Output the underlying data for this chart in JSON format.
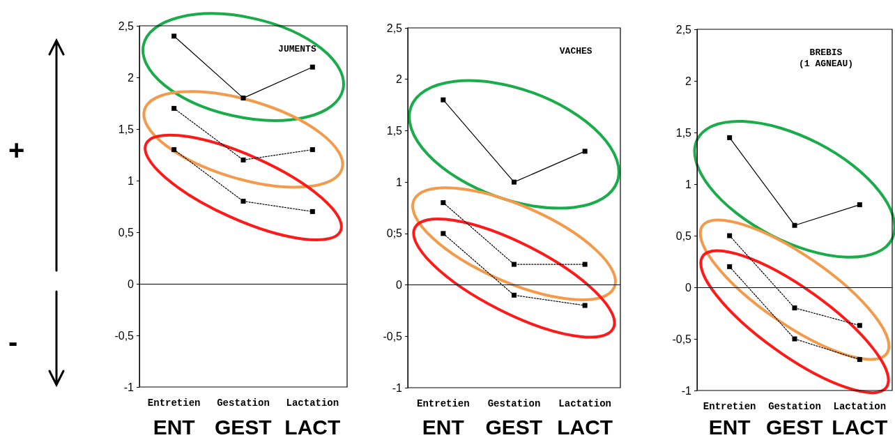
{
  "chart_data": [
    {
      "type": "line",
      "title": "JUMENTS",
      "categories": [
        "Entretien",
        "Gestation",
        "Lactation"
      ],
      "series": [
        {
          "color": "#000000",
          "line_style": "solid",
          "values": [
            2.4,
            1.8,
            2.1
          ]
        },
        {
          "color": "#000000",
          "line_style": "dotted",
          "values": [
            1.7,
            1.2,
            1.3
          ]
        },
        {
          "color": "#000000",
          "line_style": "dotted",
          "values": [
            1.3,
            0.8,
            0.7
          ]
        }
      ],
      "ylim": [
        -1,
        2.5
      ],
      "yticks": [
        {
          "value": 2.5,
          "label": "2,5"
        },
        2,
        {
          "value": 1.5,
          "label": "1,5"
        },
        1,
        {
          "value": 0.5,
          "label": "0,5"
        },
        0,
        {
          "value": -0.5,
          "label": "-0,5"
        },
        -1
      ],
      "ref_lines": [
        {
          "axis": "y",
          "value": 0
        }
      ],
      "marker": "square",
      "grid": false,
      "annotations": [
        "+",
        "-",
        "ENT",
        "GEST",
        "LACT"
      ]
    },
    {
      "type": "line",
      "title": "VACHES",
      "categories": [
        "Entretien",
        "Gestation",
        "Lactation"
      ],
      "series": [
        {
          "color": "#000000",
          "line_style": "solid",
          "values": [
            1.8,
            1.0,
            1.3
          ]
        },
        {
          "color": "#000000",
          "line_style": "dotted",
          "values": [
            0.8,
            0.2,
            0.2
          ]
        },
        {
          "color": "#000000",
          "line_style": "dotted",
          "values": [
            0.5,
            -0.1,
            -0.2
          ]
        }
      ],
      "ylim": [
        -1,
        2.5
      ],
      "yticks": [
        {
          "value": 2.5,
          "label": "2,5"
        },
        2,
        {
          "value": 1.5,
          "label": "1,5"
        },
        1,
        {
          "value": 0.5,
          "label": "0;5"
        },
        0,
        {
          "value": -0.5,
          "label": "-0,5"
        },
        -1
      ],
      "ref_lines": [
        {
          "axis": "y",
          "value": 0
        }
      ],
      "marker": "square",
      "grid": false,
      "annotations": [
        "ENT",
        "GEST",
        "LACT"
      ]
    },
    {
      "type": "line",
      "title": "BREBIS\n(1 AGNEAU)",
      "categories": [
        "Entretien",
        "Gestation",
        "Lactation"
      ],
      "series": [
        {
          "color": "#000000",
          "line_style": "solid",
          "values": [
            1.45,
            0.6,
            0.8
          ]
        },
        {
          "color": "#000000",
          "line_style": "dotted",
          "values": [
            0.5,
            -0.2,
            -0.37
          ]
        },
        {
          "color": "#000000",
          "line_style": "dotted",
          "values": [
            0.2,
            -0.5,
            -0.7
          ]
        }
      ],
      "ylim": [
        -1,
        2.5
      ],
      "yticks": [
        {
          "value": 2.5,
          "label": "2,5"
        },
        2,
        {
          "value": 1.5,
          "label": "1,5"
        },
        1,
        {
          "value": 0.5,
          "label": "0,5"
        },
        0,
        {
          "value": -0.5,
          "label": "-0,5"
        },
        -1
      ],
      "ref_lines": [
        {
          "axis": "y",
          "value": 0
        }
      ],
      "marker": "square",
      "grid": false,
      "annotations": [
        "ENT",
        "GEST",
        "LACT"
      ]
    }
  ]
}
